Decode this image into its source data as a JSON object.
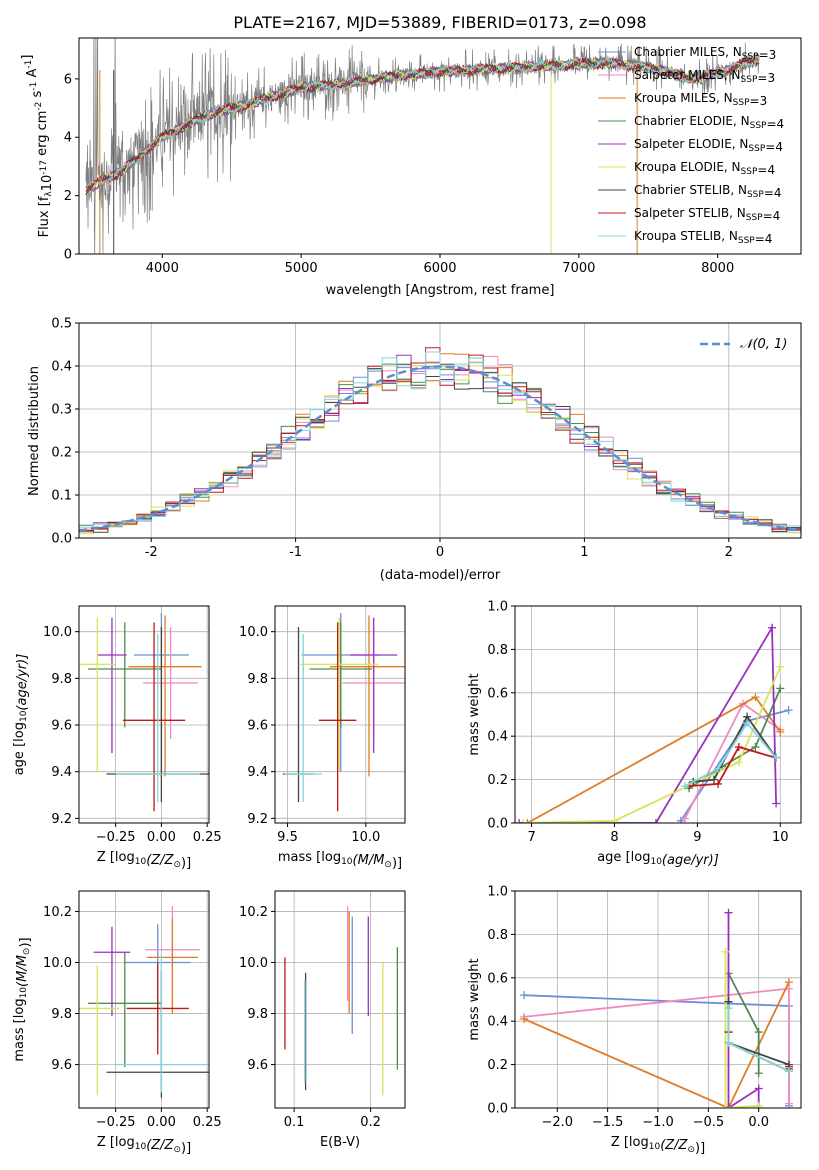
{
  "title": "PLATE=2167, MJD=53889, FIBERID=0173, z=0.098",
  "colors": {
    "chab_miles": "#6a8fd8",
    "salp_miles": "#f08ac0",
    "krou_miles": "#e07d24",
    "chab_elodie": "#4f8a4f",
    "salp_elodie": "#9b30c0",
    "krou_elodie": "#d8e45a",
    "chab_stelib": "#444444",
    "salp_stelib": "#c01818",
    "krou_stelib": "#7fd6dc",
    "data": "#7f7f7f",
    "normal": "#5b8ed6",
    "grid": "#b0b0b0"
  },
  "chart_data": [
    {
      "id": "spectrum",
      "type": "line",
      "xlabel": "wavelength [Angstrom, rest frame]",
      "ylabel": "Flux [f",
      "ylabel_parts": [
        "Flux [f",
        "λ",
        "10",
        "-17",
        " erg cm",
        "-2",
        " s",
        "-1",
        " A",
        "-1",
        "]"
      ],
      "xlim": [
        3400,
        8600
      ],
      "ylim": [
        0,
        7.4
      ],
      "xticks": [
        4000,
        5000,
        6000,
        7000,
        8000
      ],
      "yticks": [
        0,
        2,
        4,
        6
      ],
      "grid": false,
      "legend_position": "upper-right",
      "legend": [
        {
          "label": "Chabrier MILES, N",
          "sub": "SSP",
          "tail": "=3",
          "color_key": "chab_miles"
        },
        {
          "label": "Salpeter MILES, N",
          "sub": "SSP",
          "tail": "=3",
          "color_key": "salp_miles"
        },
        {
          "label": "Kroupa MILES, N",
          "sub": "SSP",
          "tail": "=3",
          "color_key": "krou_miles"
        },
        {
          "label": "Chabrier ELODIE, N",
          "sub": "SSP",
          "tail": "=4",
          "color_key": "chab_elodie"
        },
        {
          "label": "Salpeter ELODIE, N",
          "sub": "SSP",
          "tail": "=4",
          "color_key": "salp_elodie"
        },
        {
          "label": "Kroupa ELODIE, N",
          "sub": "SSP",
          "tail": "=4",
          "color_key": "krou_elodie"
        },
        {
          "label": "Chabrier STELIB, N",
          "sub": "SSP",
          "tail": "=4",
          "color_key": "chab_stelib"
        },
        {
          "label": "Salpeter STELIB, N",
          "sub": "SSP",
          "tail": "=4",
          "color_key": "salp_stelib"
        },
        {
          "label": "Kroupa STELIB, N",
          "sub": "SSP",
          "tail": "=4",
          "color_key": "krou_stelib"
        }
      ],
      "continuum_x": [
        3450,
        3600,
        3700,
        3800,
        3900,
        4000,
        4200,
        4400,
        4600,
        4800,
        5000,
        5200,
        5400,
        5600,
        5800,
        6000,
        6200,
        6400,
        6600,
        6800,
        7000,
        7200,
        7400,
        7600,
        7800,
        8000,
        8300
      ],
      "continuum_y": [
        2.2,
        2.6,
        2.8,
        3.2,
        3.6,
        4.0,
        4.5,
        4.9,
        5.1,
        5.4,
        5.7,
        5.8,
        5.9,
        6.05,
        6.15,
        6.25,
        6.3,
        6.35,
        6.4,
        6.45,
        6.5,
        6.55,
        6.45,
        6.3,
        6.0,
        6.2,
        6.7
      ]
    },
    {
      "id": "residuals",
      "type": "histogram",
      "xlabel": "(data-model)/error",
      "ylabel": "Normed distribution",
      "xlim": [
        -2.5,
        2.5
      ],
      "ylim": [
        0,
        0.5
      ],
      "xticks": [
        -2,
        -1,
        0,
        1,
        2
      ],
      "yticks": [
        0.0,
        0.1,
        0.2,
        0.3,
        0.4,
        0.5
      ],
      "grid": true,
      "bin_width": 0.1,
      "legend_position": "upper-right",
      "legend": [
        {
          "label": "𝒩(0, 1)",
          "color_key": "normal"
        }
      ]
    },
    {
      "id": "age_vs_Z",
      "type": "errorbar",
      "xlabel": "Z [log",
      "xlabel_parts": [
        "Z [log",
        "10",
        "(Z/Z",
        "⊙",
        ")]"
      ],
      "ylabel_parts": [
        "age  [log",
        "10",
        "(age/yr)]"
      ],
      "xlim": [
        -0.45,
        0.26
      ],
      "ylim": [
        9.18,
        10.11
      ],
      "xticks": [
        -0.25,
        0.0,
        0.25
      ],
      "xticklabels": [
        "−0.25",
        "0.00",
        "0.25"
      ],
      "yticks": [
        9.2,
        9.4,
        9.6,
        9.8,
        10.0
      ],
      "grid": true,
      "points": [
        {
          "c": "chab_miles",
          "x": 0.0,
          "y": 9.9,
          "xerr": [
            0.15,
            0.15
          ],
          "yerr": [
            0.5,
            0.18
          ]
        },
        {
          "c": "salp_miles",
          "x": 0.05,
          "y": 9.78,
          "xerr": [
            0.15,
            0.15
          ],
          "yerr": [
            0.24,
            0.24
          ]
        },
        {
          "c": "krou_miles",
          "x": 0.02,
          "y": 9.85,
          "xerr": [
            0.2,
            0.2
          ],
          "yerr": [
            0.47,
            0.22
          ]
        },
        {
          "c": "chab_elodie",
          "x": -0.2,
          "y": 9.84,
          "xerr": [
            0.2,
            0.2
          ],
          "yerr": [
            0.25,
            0.2
          ]
        },
        {
          "c": "salp_elodie",
          "x": -0.27,
          "y": 9.9,
          "xerr": [
            0.08,
            0.08
          ],
          "yerr": [
            0.42,
            0.16
          ]
        },
        {
          "c": "krou_elodie",
          "x": -0.35,
          "y": 9.86,
          "xerr": [
            0.1,
            0.1
          ],
          "yerr": [
            0.46,
            0.2
          ]
        },
        {
          "c": "chab_stelib",
          "x": 0.0,
          "y": 9.39,
          "xerr": [
            0.3,
            0.3
          ],
          "yerr": [
            0.12,
            0.63
          ]
        },
        {
          "c": "salp_stelib",
          "x": -0.04,
          "y": 9.62,
          "xerr": [
            0.17,
            0.17
          ],
          "yerr": [
            0.39,
            0.42
          ]
        },
        {
          "c": "krou_stelib",
          "x": -0.02,
          "y": 9.39,
          "xerr": [
            0.23,
            0.23
          ],
          "yerr": [
            0.12,
            0.6
          ]
        }
      ]
    },
    {
      "id": "age_vs_mass",
      "type": "errorbar",
      "xlabel_parts": [
        "mass [log",
        "10",
        "(M/M",
        "⊙",
        ")]"
      ],
      "xlim": [
        9.42,
        10.25
      ],
      "ylim": [
        9.18,
        10.11
      ],
      "xticks": [
        9.5,
        10.0
      ],
      "xticklabels": [
        "9.5",
        "10.0"
      ],
      "yticks": [
        9.2,
        9.4,
        9.6,
        9.8,
        10.0
      ],
      "grid": true,
      "points": [
        {
          "c": "chab_miles",
          "x": 9.84,
          "y": 9.9,
          "xerr": [
            0.25,
            0.25
          ],
          "yerr": [
            0.5,
            0.18
          ]
        },
        {
          "c": "salp_miles",
          "x": 10.05,
          "y": 9.78,
          "xerr": [
            0.2,
            0.2
          ],
          "yerr": [
            0.24,
            0.24
          ]
        },
        {
          "c": "krou_miles",
          "x": 10.02,
          "y": 9.85,
          "xerr": [
            0.25,
            0.25
          ],
          "yerr": [
            0.47,
            0.22
          ]
        },
        {
          "c": "chab_elodie",
          "x": 9.84,
          "y": 9.84,
          "xerr": [
            0.2,
            0.2
          ],
          "yerr": [
            0.25,
            0.2
          ]
        },
        {
          "c": "salp_elodie",
          "x": 10.05,
          "y": 9.9,
          "xerr": [
            0.15,
            0.15
          ],
          "yerr": [
            0.42,
            0.16
          ]
        },
        {
          "c": "krou_elodie",
          "x": 9.83,
          "y": 9.86,
          "xerr": [
            0.25,
            0.25
          ],
          "yerr": [
            0.46,
            0.2
          ]
        },
        {
          "c": "chab_stelib",
          "x": 9.57,
          "y": 9.39,
          "xerr": [
            0.1,
            0.1
          ],
          "yerr": [
            0.12,
            0.63
          ]
        },
        {
          "c": "salp_stelib",
          "x": 9.82,
          "y": 9.62,
          "xerr": [
            0.12,
            0.12
          ],
          "yerr": [
            0.39,
            0.42
          ]
        },
        {
          "c": "krou_stelib",
          "x": 9.6,
          "y": 9.39,
          "xerr": [
            0.12,
            0.12
          ],
          "yerr": [
            0.12,
            0.6
          ]
        }
      ]
    },
    {
      "id": "weight_vs_age",
      "type": "line",
      "xlabel_parts": [
        "age  [log",
        "10",
        "(age/yr)]"
      ],
      "ylabel": "mass weight",
      "xlim": [
        6.8,
        10.25
      ],
      "ylim": [
        0.0,
        1.0
      ],
      "xticks": [
        7,
        8,
        9,
        10
      ],
      "yticks": [
        0.0,
        0.2,
        0.4,
        0.6,
        0.8,
        1.0
      ],
      "grid": true,
      "series": [
        {
          "c": "chab_miles",
          "x": [
            8.8,
            9.6,
            10.1
          ],
          "y": [
            0.01,
            0.47,
            0.52
          ]
        },
        {
          "c": "salp_miles",
          "x": [
            8.85,
            9.55,
            10.0
          ],
          "y": [
            0.02,
            0.55,
            0.43
          ]
        },
        {
          "c": "krou_miles",
          "x": [
            6.95,
            9.7,
            10.0
          ],
          "y": [
            0.0,
            0.58,
            0.42
          ]
        },
        {
          "c": "chab_elodie",
          "x": [
            8.9,
            9.3,
            9.7,
            10.0
          ],
          "y": [
            0.16,
            0.26,
            0.35,
            0.62
          ]
        },
        {
          "c": "salp_elodie",
          "x": [
            6.85,
            8.5,
            9.9,
            9.95
          ],
          "y": [
            0.0,
            0.0,
            0.9,
            0.09
          ]
        },
        {
          "c": "krou_elodie",
          "x": [
            6.9,
            8.0,
            9.5,
            10.0
          ],
          "y": [
            0.0,
            0.01,
            0.28,
            0.72
          ]
        },
        {
          "c": "chab_stelib",
          "x": [
            8.95,
            9.2,
            9.6,
            9.95
          ],
          "y": [
            0.19,
            0.2,
            0.49,
            0.3
          ]
        },
        {
          "c": "salp_stelib",
          "x": [
            8.9,
            9.25,
            9.5,
            9.95
          ],
          "y": [
            0.17,
            0.18,
            0.35,
            0.3
          ]
        },
        {
          "c": "krou_stelib",
          "x": [
            8.85,
            9.25,
            9.6,
            9.95
          ],
          "y": [
            0.17,
            0.25,
            0.46,
            0.3
          ]
        }
      ]
    },
    {
      "id": "mass_vs_Z",
      "type": "errorbar",
      "xlabel_parts": [
        "Z [log",
        "10",
        "(Z/Z",
        "⊙",
        ")]"
      ],
      "ylabel_parts": [
        "mass [log",
        "10",
        "(M/M",
        "⊙",
        ")]"
      ],
      "xlim": [
        -0.45,
        0.26
      ],
      "ylim": [
        9.43,
        10.28
      ],
      "xticks": [
        -0.25,
        0.0,
        0.25
      ],
      "xticklabels": [
        "−0.25",
        "0.00",
        "0.25"
      ],
      "yticks": [
        9.6,
        9.8,
        10.0,
        10.2
      ],
      "grid": true,
      "points": [
        {
          "c": "chab_miles",
          "x": -0.02,
          "y": 10.0,
          "xerr": [
            0.18,
            0.18
          ],
          "yerr": [
            0.28,
            0.15
          ]
        },
        {
          "c": "salp_miles",
          "x": 0.06,
          "y": 10.05,
          "xerr": [
            0.15,
            0.15
          ],
          "yerr": [
            0.25,
            0.17
          ]
        },
        {
          "c": "krou_miles",
          "x": 0.06,
          "y": 10.02,
          "xerr": [
            0.14,
            0.14
          ],
          "yerr": [
            0.22,
            0.15
          ]
        },
        {
          "c": "chab_elodie",
          "x": -0.2,
          "y": 9.84,
          "xerr": [
            0.2,
            0.2
          ],
          "yerr": [
            0.25,
            0.2
          ]
        },
        {
          "c": "salp_elodie",
          "x": -0.27,
          "y": 10.04,
          "xerr": [
            0.1,
            0.1
          ],
          "yerr": [
            0.25,
            0.1
          ]
        },
        {
          "c": "krou_elodie",
          "x": -0.35,
          "y": 9.82,
          "xerr": [
            0.12,
            0.12
          ],
          "yerr": [
            0.34,
            0.17
          ]
        },
        {
          "c": "chab_stelib",
          "x": 0.0,
          "y": 9.57,
          "xerr": [
            0.3,
            0.3
          ],
          "yerr": [
            0.1,
            0.4
          ]
        },
        {
          "c": "salp_stelib",
          "x": -0.02,
          "y": 9.82,
          "xerr": [
            0.17,
            0.17
          ],
          "yerr": [
            0.18,
            0.18
          ]
        },
        {
          "c": "krou_stelib",
          "x": 0.0,
          "y": 9.6,
          "xerr": [
            0.25,
            0.25
          ],
          "yerr": [
            0.11,
            0.43
          ]
        }
      ]
    },
    {
      "id": "mass_vs_ebv",
      "type": "errorbar",
      "xlabel": "E(B-V)",
      "xlim": [
        0.075,
        0.245
      ],
      "ylim": [
        9.43,
        10.28
      ],
      "xticks": [
        0.1,
        0.2
      ],
      "xticklabels": [
        "0.1",
        "0.2"
      ],
      "yticks": [
        9.6,
        9.8,
        10.0,
        10.2
      ],
      "grid": true,
      "points": [
        {
          "c": "chab_miles",
          "x": 0.176,
          "y": 9.95,
          "xerr": [
            0,
            0
          ],
          "yerr": [
            0.23,
            0.23
          ]
        },
        {
          "c": "salp_miles",
          "x": 0.17,
          "y": 10.05,
          "xerr": [
            0,
            0
          ],
          "yerr": [
            0.2,
            0.17
          ]
        },
        {
          "c": "krou_miles",
          "x": 0.172,
          "y": 10.0,
          "xerr": [
            0,
            0
          ],
          "yerr": [
            0.2,
            0.2
          ]
        },
        {
          "c": "chab_elodie",
          "x": 0.235,
          "y": 9.82,
          "xerr": [
            0,
            0
          ],
          "yerr": [
            0.24,
            0.24
          ]
        },
        {
          "c": "salp_elodie",
          "x": 0.197,
          "y": 10.04,
          "xerr": [
            0,
            0
          ],
          "yerr": [
            0.25,
            0.14
          ]
        },
        {
          "c": "krou_elodie",
          "x": 0.216,
          "y": 9.74,
          "xerr": [
            0,
            0
          ],
          "yerr": [
            0.26,
            0.26
          ]
        },
        {
          "c": "chab_stelib",
          "x": 0.115,
          "y": 9.73,
          "xerr": [
            0,
            0
          ],
          "yerr": [
            0.23,
            0.23
          ]
        },
        {
          "c": "salp_stelib",
          "x": 0.088,
          "y": 9.84,
          "xerr": [
            0,
            0
          ],
          "yerr": [
            0.18,
            0.18
          ]
        },
        {
          "c": "krou_stelib",
          "x": 0.114,
          "y": 9.73,
          "xerr": [
            0,
            0
          ],
          "yerr": [
            0.2,
            0.2
          ]
        }
      ]
    },
    {
      "id": "weight_vs_Z",
      "type": "line",
      "xlabel_parts": [
        "Z [log",
        "10",
        "(Z/Z",
        "⊙",
        ")]"
      ],
      "ylabel": "mass weight",
      "xlim": [
        -2.42,
        0.42
      ],
      "ylim": [
        0.0,
        1.0
      ],
      "xticks": [
        -2.0,
        -1.5,
        -1.0,
        -0.5,
        0.0
      ],
      "xticklabels": [
        "−2.0",
        "−1.5",
        "−1.0",
        "−0.5",
        "0.0"
      ],
      "yticks": [
        0.0,
        0.2,
        0.4,
        0.6,
        0.8,
        1.0
      ],
      "grid": true,
      "series": [
        {
          "c": "chab_miles",
          "x": [
            -2.33,
            0.3,
            0.3
          ],
          "y": [
            0.52,
            0.47,
            0.01
          ]
        },
        {
          "c": "salp_miles",
          "x": [
            -2.33,
            0.3,
            0.3
          ],
          "y": [
            0.42,
            0.55,
            0.02
          ]
        },
        {
          "c": "krou_miles",
          "x": [
            -2.33,
            -0.3,
            0.3
          ],
          "y": [
            0.41,
            0.0,
            0.58
          ]
        },
        {
          "c": "chab_elodie",
          "x": [
            -0.3,
            -0.3,
            0.0,
            0.0
          ],
          "y": [
            0.35,
            0.62,
            0.35,
            0.16
          ]
        },
        {
          "c": "salp_elodie",
          "x": [
            -0.3,
            -0.3,
            0.0,
            0.0
          ],
          "y": [
            0.9,
            0.0,
            0.09,
            0.0
          ]
        },
        {
          "c": "krou_elodie",
          "x": [
            -0.33,
            -0.33,
            0.0
          ],
          "y": [
            0.72,
            0.0,
            0.01
          ]
        },
        {
          "c": "chab_stelib",
          "x": [
            -0.3,
            -0.3,
            0.3,
            0.3
          ],
          "y": [
            0.49,
            0.3,
            0.2,
            0.19
          ]
        },
        {
          "c": "salp_stelib",
          "x": [
            -0.3,
            -0.3,
            0.3,
            0.3
          ],
          "y": [
            0.35,
            0.3,
            0.17,
            0.18
          ]
        },
        {
          "c": "krou_stelib",
          "x": [
            -0.3,
            -0.3,
            0.3,
            0.3
          ],
          "y": [
            0.46,
            0.3,
            0.17,
            0.17
          ]
        }
      ]
    }
  ]
}
